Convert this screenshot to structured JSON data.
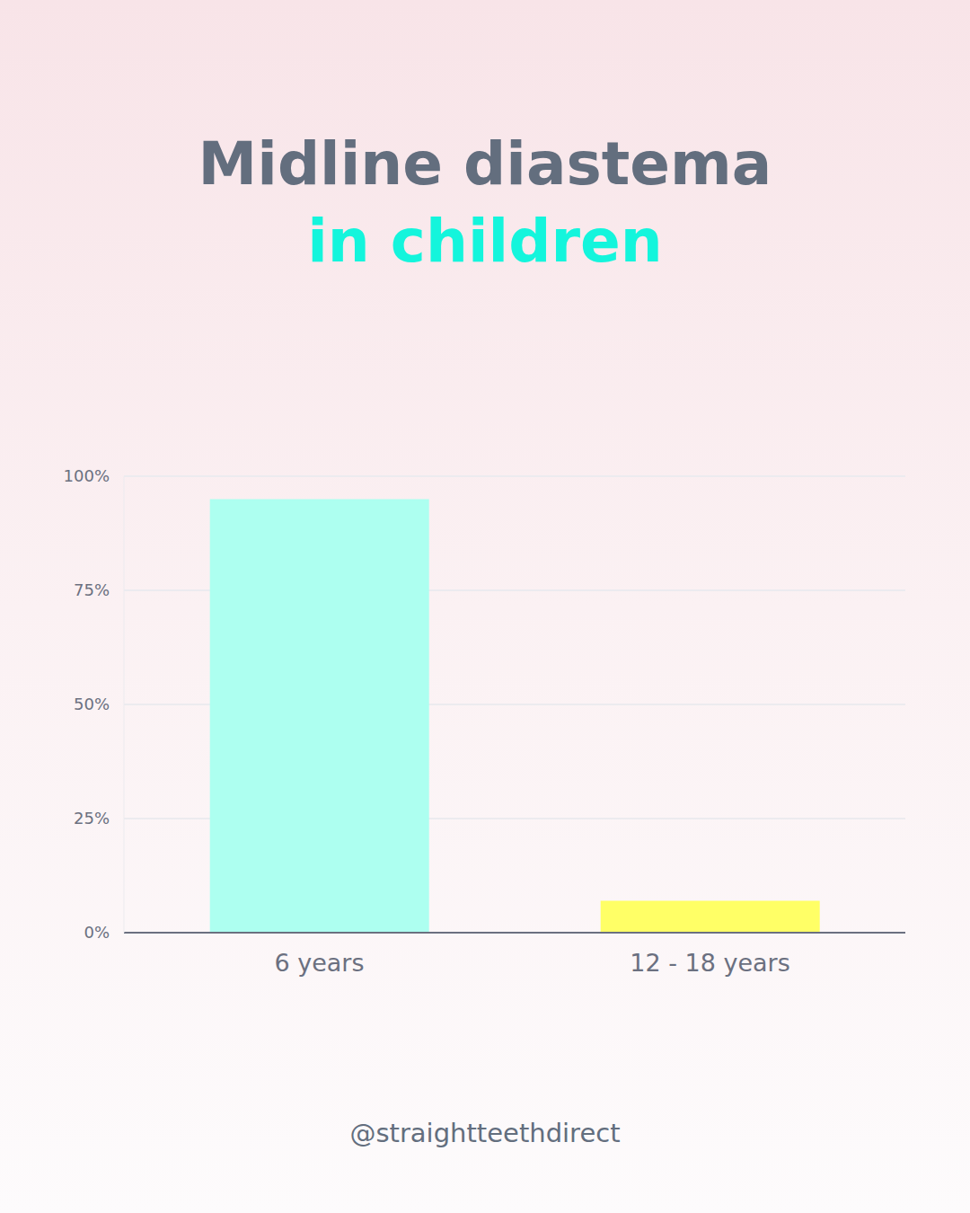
{
  "chart_data": {
    "type": "bar",
    "title": "Midline diastema",
    "subtitle": "in children",
    "annotations": [
      "@straightteethdirect"
    ],
    "categories": [
      "6 years",
      "12 - 18 years"
    ],
    "values": [
      95,
      7
    ],
    "colors": [
      "#adfff0",
      "#ffff66"
    ],
    "ylim": [
      0,
      100
    ],
    "yticks": [
      {
        "value": 0,
        "label": "0%"
      },
      {
        "value": 25,
        "label": "25%"
      },
      {
        "value": 50,
        "label": "50%"
      },
      {
        "value": 75,
        "label": "75%"
      },
      {
        "value": 100,
        "label": "100%"
      }
    ],
    "grid": true
  }
}
